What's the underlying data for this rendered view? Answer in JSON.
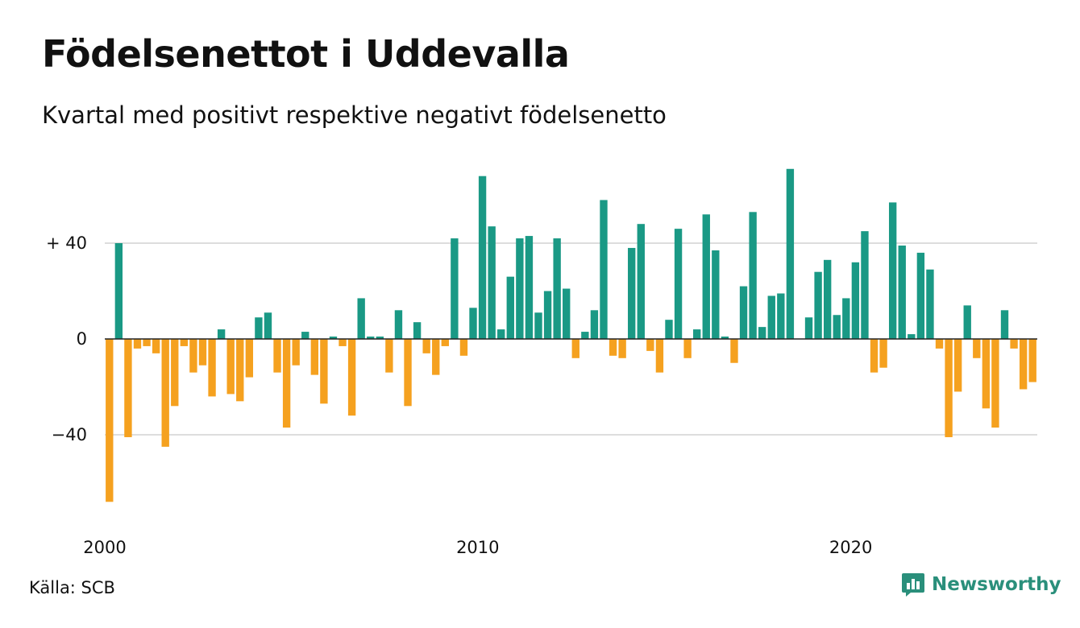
{
  "colors": {
    "positive": "#1a9985",
    "negative": "#f5a11f",
    "grid": "#dddddd",
    "axis": "#222222",
    "brand": "#2a8f7b"
  },
  "footer": {
    "source": "Källa: SCB",
    "brand_name": "Newsworthy",
    "brand_icon": "newsworthy-logo-icon"
  },
  "chart_data": {
    "type": "bar",
    "title": "Födelsenettot i Uddevalla",
    "subtitle": "Kvartal med positivt respektive negativt födelsenetto",
    "xlabel": "",
    "ylabel": "",
    "ylim": [
      -70,
      72
    ],
    "x_start_year": 2000,
    "x_start_quarter": 1,
    "x_tick_labels": [
      "2000",
      "2010",
      "2020"
    ],
    "y_ticks": [
      {
        "value": 40,
        "label": "+ 40"
      },
      {
        "value": 0,
        "label": "0"
      },
      {
        "value": -40,
        "label": "−40"
      }
    ],
    "grid": true,
    "values": [
      -68,
      40,
      -41,
      -4,
      -3,
      -6,
      -45,
      -28,
      -3,
      -14,
      -11,
      -24,
      4,
      -23,
      -26,
      -16,
      9,
      11,
      -14,
      -37,
      -11,
      3,
      -15,
      -27,
      1,
      -3,
      -32,
      17,
      1,
      1,
      -14,
      12,
      -28,
      7,
      -6,
      -15,
      -3,
      42,
      -7,
      13,
      68,
      47,
      4,
      26,
      42,
      43,
      11,
      20,
      42,
      21,
      -8,
      3,
      12,
      58,
      -7,
      -8,
      38,
      48,
      -5,
      -14,
      8,
      46,
      -8,
      4,
      52,
      37,
      1,
      -10,
      22,
      53,
      5,
      18,
      19,
      71,
      0,
      9,
      28,
      33,
      10,
      17,
      32,
      45,
      -14,
      -12,
      57,
      39,
      2,
      36,
      29,
      -4,
      -41,
      -22,
      14,
      -8,
      -29,
      -37,
      12,
      -4,
      -21,
      -18
    ]
  }
}
